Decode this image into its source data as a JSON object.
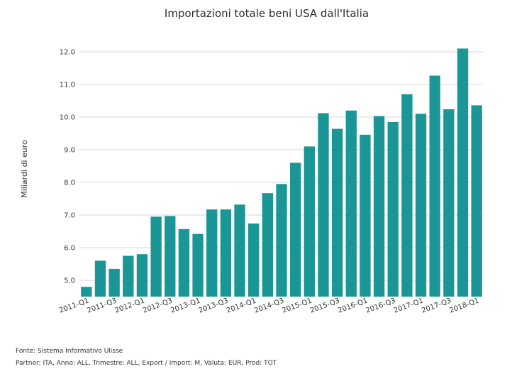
{
  "chart_data": {
    "type": "bar",
    "title": "Importazioni totale beni USA dall'Italia",
    "ylabel": "Miliardi di euro",
    "xlabel": "",
    "ylim": [
      4.5,
      12.5
    ],
    "yticks": [
      "5.0",
      "6.0",
      "7.0",
      "8.0",
      "9.0",
      "10.0",
      "11.0",
      "12.0"
    ],
    "grid": true,
    "bar_color": "#1b9696",
    "categories": [
      "2011-Q1",
      "2011-Q2",
      "2011-Q3",
      "2011-Q4",
      "2012-Q1",
      "2012-Q2",
      "2012-Q3",
      "2012-Q4",
      "2013-Q1",
      "2013-Q2",
      "2013-Q3",
      "2013-Q4",
      "2014-Q1",
      "2014-Q2",
      "2014-Q3",
      "2014-Q4",
      "2015-Q1",
      "2015-Q2",
      "2015-Q3",
      "2015-Q4",
      "2016-Q1",
      "2016-Q2",
      "2016-Q3",
      "2016-Q4",
      "2017-Q1",
      "2017-Q2",
      "2017-Q3",
      "2017-Q4",
      "2018-Q1"
    ],
    "x_tick_labels": [
      "2011-Q1",
      "2011-Q3",
      "2012-Q1",
      "2012-Q3",
      "2013-Q1",
      "2013-Q3",
      "2014-Q1",
      "2014-Q3",
      "2015-Q1",
      "2015-Q3",
      "2016-Q1",
      "2016-Q3",
      "2017-Q1",
      "2017-Q3",
      "2018-Q1"
    ],
    "values": [
      4.8,
      5.6,
      5.35,
      5.75,
      5.8,
      6.95,
      6.97,
      6.57,
      6.42,
      7.17,
      7.17,
      7.32,
      6.74,
      7.67,
      7.95,
      8.6,
      9.1,
      10.12,
      9.64,
      10.2,
      9.46,
      10.03,
      9.85,
      10.7,
      10.1,
      11.27,
      10.24,
      12.1,
      10.36
    ]
  },
  "footer": {
    "source": "Fonte: Sistema Informativo Ulisse",
    "partner": "Partner: ITA, Anno: ALL, Trimestre: ALL, Export / Import: M, Valuta: EUR, Prod: TOT"
  }
}
